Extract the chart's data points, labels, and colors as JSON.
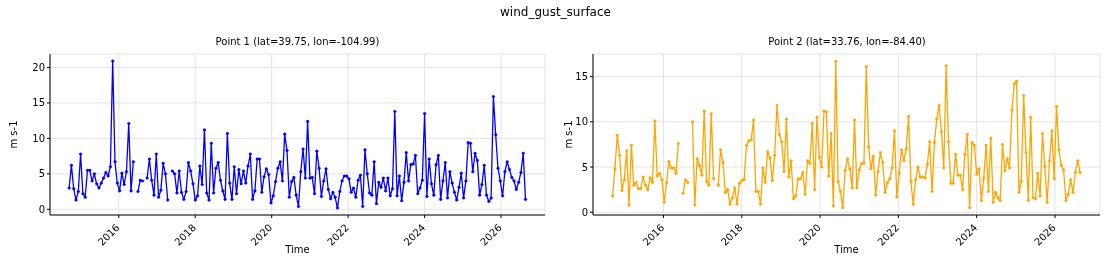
{
  "chart_data": [
    {
      "type": "line",
      "title": "wind_gust_surface",
      "subtitle": "Point 1 (lat=39.75, lon=-104.99)",
      "xlabel": "Time",
      "ylabel": "m s-1",
      "x": [
        2014.7,
        2014.76,
        2014.82,
        2014.88,
        2014.94,
        2015,
        2015.06,
        2015.12,
        2015.18,
        2015.24,
        2015.3,
        2015.36,
        2015.42,
        2015.48,
        2015.54,
        2015.6,
        2015.66,
        2015.72,
        2015.78,
        2015.84,
        2015.9,
        2015.96,
        2016.02,
        2016.08,
        2016.14,
        2016.2,
        2016.26,
        2016.32,
        2016.38,
        2016.44,
        2016.5,
        2016.56,
        2016.62,
        2016.68,
        2016.74,
        2016.8,
        2016.86,
        2016.92,
        2016.98,
        2017.04,
        2017.1,
        2017.16,
        2017.22,
        2017.28,
        2017.34,
        2017.4,
        2017.46,
        2017.52,
        2017.58,
        2017.64,
        2017.7,
        2017.76,
        2017.82,
        2017.88,
        2017.94,
        2018,
        2018.06,
        2018.12,
        2018.18,
        2018.24,
        2018.3,
        2018.36,
        2018.42,
        2018.48,
        2018.54,
        2018.6,
        2018.66,
        2018.72,
        2018.78,
        2018.84,
        2018.9,
        2018.96,
        2019.02,
        2019.08,
        2019.14,
        2019.2,
        2019.26,
        2019.32,
        2019.38,
        2019.44,
        2019.5,
        2019.56,
        2019.62,
        2019.68,
        2019.74,
        2019.8,
        2019.86,
        2019.92,
        2019.98,
        2020.04,
        2020.1,
        2020.16,
        2020.22,
        2020.28,
        2020.34,
        2020.4,
        2020.46,
        2020.52,
        2020.58,
        2020.64,
        2020.7,
        2020.76,
        2020.82,
        2020.88,
        2020.94,
        2021,
        2021.06,
        2021.12,
        2021.18,
        2021.24,
        2021.3,
        2021.36,
        2021.42,
        2021.48,
        2021.54,
        2021.6,
        2021.66,
        2021.72,
        2021.78,
        2021.84,
        2021.9,
        2021.96,
        2022.02,
        2022.08,
        2022.14,
        2022.2,
        2022.26,
        2022.32,
        2022.38,
        2022.44,
        2022.5,
        2022.56,
        2022.62,
        2022.68,
        2022.74,
        2022.8,
        2022.86,
        2022.92,
        2022.98,
        2023.04,
        2023.1,
        2023.16,
        2023.22,
        2023.28,
        2023.34,
        2023.4,
        2023.46,
        2023.52,
        2023.58,
        2023.64,
        2023.7,
        2023.76,
        2023.82,
        2023.88,
        2023.94,
        2024,
        2024.06,
        2024.12,
        2024.18,
        2024.24,
        2024.3,
        2024.36,
        2024.42,
        2024.48,
        2024.54,
        2024.6,
        2024.66,
        2024.72,
        2024.78,
        2024.84,
        2024.9,
        2024.96,
        2025.02,
        2025.08,
        2025.14,
        2025.2,
        2025.26,
        2025.32,
        2025.38,
        2025.44,
        2025.5,
        2025.56,
        2025.62,
        2025.68,
        2025.74,
        2025.8,
        2025.86,
        2025.92,
        2025.98,
        2026.04,
        2026.1,
        2026.16,
        2026.22,
        2026.28,
        2026.34,
        2026.4,
        2026.46,
        2026.52,
        2026.58,
        2026.64
      ],
      "series": [
        {
          "color": "#0000ff",
          "values": [
            3.0,
            6.2,
            2.9,
            1.3,
            2.5,
            7.8,
            2.2,
            1.7,
            5.5,
            5.5,
            4.0,
            5.0,
            3.6,
            3.0,
            3.7,
            4.4,
            5.2,
            4.7,
            6.0,
            20.9,
            6.7,
            3.7,
            2.6,
            5.1,
            3.5,
            5.3,
            12.1,
            2.6,
            6.7,
            null,
            2.5,
            4.1,
            4.0,
            null,
            4.4,
            7.1,
            4.1,
            2.0,
            7.8,
            1.7,
            2.7,
            6.5,
            5.0,
            1.3,
            null,
            5.4,
            5.0,
            2.3,
            5.4,
            2.4,
            1.4,
            2.5,
            6.6,
            5.4,
            3.6,
            1.3,
            1.9,
            6.1,
            3.5,
            11.2,
            2.3,
            1.3,
            9.3,
            2.3,
            5.8,
            6.6,
            4.1,
            2.6,
            1.4,
            10.7,
            3.7,
            1.4,
            6.0,
            2.2,
            5.6,
            3.6,
            5.4,
            3.7,
            6.1,
            7.8,
            1.4,
            2.6,
            7.1,
            7.1,
            2.4,
            4.6,
            5.7,
            4.9,
            0.9,
            1.9,
            3.9,
            5.8,
            6.7,
            4.0,
            10.6,
            8.3,
            1.7,
            3.9,
            4.5,
            2.0,
            0.4,
            5.3,
            8.5,
            4.4,
            12.4,
            4.4,
            4.5,
            2.2,
            8.2,
            5.8,
            1.8,
            4.0,
            5.7,
            2.8,
            1.5,
            2.4,
            1.7,
            0.2,
            2.5,
            4.0,
            4.7,
            4.7,
            4.3,
            2.4,
            3.0,
            1.7,
            4.1,
            4.8,
            0.4,
            8.4,
            5.0,
            2.3,
            2.0,
            6.7,
            0.8,
            3.8,
            3.1,
            4.4,
            2.6,
            4.4,
            1.9,
            2.9,
            13.8,
            1.9,
            4.7,
            1.2,
            3.8,
            8.0,
            4.0,
            6.3,
            6.4,
            7.6,
            2.2,
            3.0,
            4.1,
            13.5,
            1.8,
            7.1,
            3.6,
            2.0,
            6.3,
            7.6,
            1.4,
            4.0,
            6.6,
            1.6,
            5.3,
            3.7,
            2.4,
            1.3,
            3.1,
            5.1,
            1.6,
            4.0,
            9.4,
            9.3,
            5.3,
            7.9,
            6.9,
            2.0,
            3.5,
            6.2,
            2.0,
            1.1,
            1.6,
            15.9,
            10.5,
            5.8,
            4.0,
            1.9,
            5.3,
            6.7,
            5.6,
            4.5,
            4.0,
            2.8,
            3.8,
            5.2,
            7.9,
            1.4
          ]
        }
      ],
      "xlim": [
        2014.2,
        2027.15
      ],
      "ylim": [
        -0.8,
        21.9
      ],
      "xticks": [
        2016,
        2018,
        2020,
        2022,
        2024,
        2026
      ],
      "yticks": [
        0,
        5,
        10,
        15,
        20
      ],
      "grid": true,
      "marker": "circle",
      "line_style": "solid"
    },
    {
      "type": "line",
      "subtitle": "Point 2 (lat=33.76, lon=-84.40)",
      "xlabel": "Time",
      "ylabel": "m s-1",
      "x": [
        2014.7,
        2014.76,
        2014.82,
        2014.88,
        2014.94,
        2015,
        2015.06,
        2015.12,
        2015.18,
        2015.24,
        2015.3,
        2015.36,
        2015.42,
        2015.48,
        2015.54,
        2015.6,
        2015.66,
        2015.72,
        2015.78,
        2015.84,
        2015.9,
        2015.96,
        2016.02,
        2016.08,
        2016.14,
        2016.2,
        2016.26,
        2016.32,
        2016.38,
        2016.44,
        2016.5,
        2016.56,
        2016.62,
        2016.68,
        2016.74,
        2016.8,
        2016.86,
        2016.92,
        2016.98,
        2017.04,
        2017.1,
        2017.16,
        2017.22,
        2017.28,
        2017.34,
        2017.4,
        2017.46,
        2017.52,
        2017.58,
        2017.64,
        2017.7,
        2017.76,
        2017.82,
        2017.88,
        2017.94,
        2018,
        2018.06,
        2018.12,
        2018.18,
        2018.24,
        2018.3,
        2018.36,
        2018.42,
        2018.48,
        2018.54,
        2018.6,
        2018.66,
        2018.72,
        2018.78,
        2018.84,
        2018.9,
        2018.96,
        2019.02,
        2019.08,
        2019.14,
        2019.2,
        2019.26,
        2019.32,
        2019.38,
        2019.44,
        2019.5,
        2019.56,
        2019.62,
        2019.68,
        2019.74,
        2019.8,
        2019.86,
        2019.92,
        2019.98,
        2020.04,
        2020.1,
        2020.16,
        2020.22,
        2020.28,
        2020.34,
        2020.4,
        2020.46,
        2020.52,
        2020.58,
        2020.64,
        2020.7,
        2020.76,
        2020.82,
        2020.88,
        2020.94,
        2021,
        2021.06,
        2021.12,
        2021.18,
        2021.24,
        2021.3,
        2021.36,
        2021.42,
        2021.48,
        2021.54,
        2021.6,
        2021.66,
        2021.72,
        2021.78,
        2021.84,
        2021.9,
        2021.96,
        2022.02,
        2022.08,
        2022.14,
        2022.2,
        2022.26,
        2022.32,
        2022.38,
        2022.44,
        2022.5,
        2022.56,
        2022.62,
        2022.68,
        2022.74,
        2022.8,
        2022.86,
        2022.92,
        2022.98,
        2023.04,
        2023.1,
        2023.16,
        2023.22,
        2023.28,
        2023.34,
        2023.4,
        2023.46,
        2023.52,
        2023.58,
        2023.64,
        2023.7,
        2023.76,
        2023.82,
        2023.88,
        2023.94,
        2024,
        2024.06,
        2024.12,
        2024.18,
        2024.24,
        2024.3,
        2024.36,
        2024.42,
        2024.48,
        2024.54,
        2024.6,
        2024.66,
        2024.72,
        2024.78,
        2024.84,
        2024.9,
        2024.96,
        2025.02,
        2025.08,
        2025.14,
        2025.2,
        2025.26,
        2025.32,
        2025.38,
        2025.44,
        2025.5,
        2025.56,
        2025.62,
        2025.68,
        2025.74,
        2025.8,
        2025.86,
        2025.92,
        2025.98,
        2026.04,
        2026.1,
        2026.16,
        2026.22,
        2026.28,
        2026.34,
        2026.4,
        2026.46,
        2026.52,
        2026.58,
        2026.64
      ],
      "series": [
        {
          "color": "#ffa500",
          "values": [
            1.8,
            4.8,
            8.5,
            6.3,
            2.4,
            3.6,
            6.8,
            0.8,
            7.4,
            3.0,
            3.3,
            2.6,
            2.6,
            3.9,
            3.0,
            2.5,
            3.8,
            3.3,
            10.1,
            4.0,
            4.3,
            3.6,
            1.1,
            3.3,
            5.6,
            4.9,
            4.9,
            4.3,
            7.6,
            null,
            2.1,
            3.6,
            3.3,
            null,
            10.0,
            0.8,
            5.9,
            5.2,
            4.1,
            11.2,
            3.4,
            3.0,
            10.9,
            3.7,
            null,
            3.0,
            6.9,
            5.5,
            2.2,
            2.5,
            0.9,
            1.6,
            2.7,
            0.9,
            3.2,
            3.5,
            3.6,
            7.4,
            7.9,
            8.0,
            10.2,
            2.3,
            2.3,
            0.9,
            4.9,
            3.3,
            6.7,
            6.0,
            3.5,
            6.3,
            11.8,
            8.6,
            7.8,
            4.5,
            10.3,
            3.9,
            5.7,
            1.5,
            1.8,
            3.7,
            3.7,
            4.4,
            2.0,
            5.7,
            5.4,
            9.8,
            2.5,
            10.5,
            6.1,
            5.0,
            11.2,
            11.1,
            4.0,
            8.7,
            0.7,
            16.7,
            3.4,
            2.3,
            0.5,
            4.6,
            5.9,
            4.8,
            2.7,
            10.2,
            2.7,
            4.7,
            5.4,
            5.4,
            16.1,
            7.2,
            4.8,
            6.2,
            1.9,
            4.5,
            6.6,
            5.5,
            2.2,
            3.3,
            3.7,
            4.9,
            9.0,
            1.7,
            4.3,
            6.9,
            5.7,
            7.0,
            10.6,
            3.4,
            0.9,
            3.6,
            5.0,
            3.9,
            3.9,
            3.8,
            5.3,
            7.8,
            2.3,
            7.7,
            10.3,
            11.8,
            8.9,
            4.9,
            16.2,
            7.8,
            3.2,
            3.2,
            6.4,
            4.1,
            4.1,
            2.5,
            6.4,
            8.6,
            0.5,
            7.7,
            7.4,
            4.2,
            4.8,
            1.3,
            3.8,
            7.4,
            2.3,
            8.2,
            1.1,
            2.2,
            1.6,
            1.3,
            7.5,
            4.6,
            5.9,
            4.9,
            11.3,
            14.2,
            14.5,
            2.2,
            3.4,
            12.9,
            6.6,
            1.3,
            10.5,
            1.6,
            1.5,
            4.3,
            1.8,
            8.7,
            5.1,
            1.1,
            5.7,
            9.0,
            3.7,
            11.7,
            6.9,
            5.2,
            4.7,
            1.3,
            2.0,
            3.6,
            2.2,
            4.4,
            5.7,
            4.4
          ]
        }
      ],
      "xlim": [
        2014.2,
        2027.15
      ],
      "ylim": [
        -0.3,
        17.5
      ],
      "xticks": [
        2016,
        2018,
        2020,
        2022,
        2024,
        2026
      ],
      "yticks": [
        0,
        5,
        10,
        15
      ],
      "grid": true,
      "marker": "circle",
      "line_style": "solid"
    }
  ]
}
